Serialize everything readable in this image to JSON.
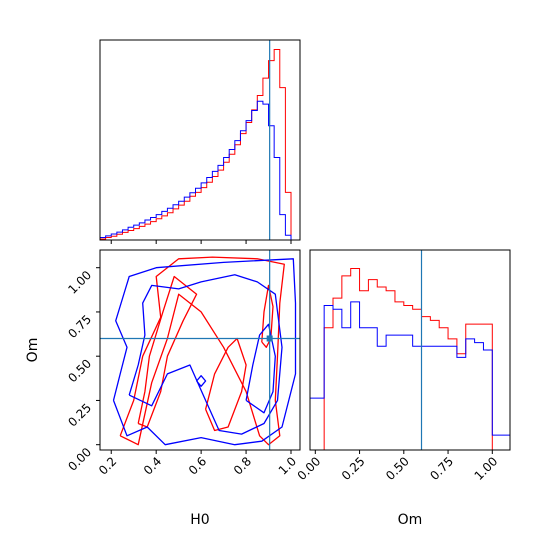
{
  "colors": {
    "series_a": "#ff0000",
    "series_b": "#0000ff",
    "truth": "#1f77b4",
    "axes": "#000000"
  },
  "chart_data": [
    {
      "type": "histogram",
      "panel": "H0 marginal",
      "xlabel": "",
      "xlim": [
        0.15,
        1.04
      ],
      "truth": 0.905,
      "bin_edges": [
        0.15,
        0.175,
        0.2,
        0.225,
        0.25,
        0.275,
        0.3,
        0.325,
        0.35,
        0.375,
        0.4,
        0.425,
        0.45,
        0.475,
        0.5,
        0.525,
        0.55,
        0.575,
        0.6,
        0.625,
        0.65,
        0.675,
        0.7,
        0.725,
        0.75,
        0.775,
        0.8,
        0.825,
        0.85,
        0.875,
        0.9,
        0.925,
        0.95,
        0.975,
        1.0
      ],
      "series": [
        {
          "color": "red",
          "values": [
            0.3,
            0.8,
            1.2,
            1.8,
            2.4,
            3.0,
            3.6,
            4.3,
            5.0,
            5.8,
            6.7,
            7.6,
            8.6,
            9.8,
            11.0,
            12.2,
            13.8,
            15.0,
            16.5,
            18.2,
            20.0,
            22.0,
            24.5,
            27.0,
            30.0,
            33.5,
            37.0,
            41.0,
            45.5,
            51.0,
            56.5,
            60.0,
            48.0,
            15.0
          ]
        },
        {
          "color": "blue",
          "values": [
            0.8,
            1.3,
            1.9,
            2.5,
            3.2,
            4.0,
            4.7,
            5.4,
            6.3,
            7.1,
            8.0,
            9.0,
            10.0,
            11.1,
            12.2,
            13.5,
            14.9,
            16.3,
            18.0,
            19.7,
            21.6,
            23.5,
            26.0,
            28.5,
            31.3,
            34.4,
            37.6,
            40.8,
            43.7,
            42.8,
            36.0,
            26.0,
            8.0,
            1.5
          ]
        }
      ]
    },
    {
      "type": "contour",
      "panel": "H0 vs Om joint",
      "xlabel": "H0",
      "ylabel": "Om",
      "xlim": [
        0.15,
        1.04
      ],
      "ylim": [
        -0.03,
        1.1
      ],
      "xticks": [
        "0.2",
        "0.4",
        "0.6",
        "0.8",
        "1.0"
      ],
      "yticks": [
        "0.00",
        "0.25",
        "0.50",
        "0.75",
        "1.00"
      ],
      "truth": [
        0.905,
        0.6
      ],
      "series": [
        {
          "color": "red",
          "contours": [
            [
              [
                0.24,
                0.05
              ],
              [
                0.3,
                0.25
              ],
              [
                0.34,
                0.5
              ],
              [
                0.42,
                0.72
              ],
              [
                0.4,
                0.95
              ],
              [
                0.5,
                1.05
              ],
              [
                0.65,
                1.06
              ],
              [
                0.85,
                1.05
              ],
              [
                0.97,
                1.02
              ],
              [
                0.95,
                0.8
              ],
              [
                0.94,
                0.5
              ],
              [
                0.93,
                0.25
              ],
              [
                0.95,
                0.05
              ],
              [
                0.9,
                0.0
              ],
              [
                0.86,
                0.05
              ],
              [
                0.8,
                0.3
              ],
              [
                0.7,
                0.55
              ],
              [
                0.6,
                0.75
              ],
              [
                0.5,
                0.85
              ],
              [
                0.45,
                0.6
              ],
              [
                0.38,
                0.35
              ],
              [
                0.32,
                0.0
              ],
              [
                0.24,
                0.05
              ]
            ],
            [
              [
                0.32,
                0.12
              ],
              [
                0.35,
                0.3
              ],
              [
                0.37,
                0.5
              ],
              [
                0.43,
                0.75
              ],
              [
                0.48,
                0.95
              ],
              [
                0.58,
                0.85
              ],
              [
                0.52,
                0.7
              ],
              [
                0.45,
                0.5
              ],
              [
                0.42,
                0.3
              ],
              [
                0.36,
                0.1
              ],
              [
                0.32,
                0.12
              ]
            ],
            [
              [
                0.62,
                0.2
              ],
              [
                0.66,
                0.4
              ],
              [
                0.72,
                0.55
              ],
              [
                0.76,
                0.6
              ],
              [
                0.8,
                0.45
              ],
              [
                0.78,
                0.3
              ],
              [
                0.72,
                0.1
              ],
              [
                0.66,
                0.08
              ],
              [
                0.62,
                0.2
              ]
            ],
            [
              [
                0.87,
                0.58
              ],
              [
                0.88,
                0.75
              ],
              [
                0.9,
                0.9
              ],
              [
                0.92,
                0.78
              ],
              [
                0.91,
                0.6
              ],
              [
                0.89,
                0.55
              ],
              [
                0.87,
                0.58
              ]
            ]
          ]
        },
        {
          "color": "blue",
          "contours": [
            [
              [
                0.21,
                0.25
              ],
              [
                0.27,
                0.05
              ],
              [
                0.36,
                0.1
              ],
              [
                0.44,
                0.0
              ],
              [
                0.6,
                0.04
              ],
              [
                0.75,
                0.0
              ],
              [
                0.87,
                0.02
              ],
              [
                0.96,
                0.1
              ],
              [
                1.02,
                0.4
              ],
              [
                1.02,
                0.8
              ],
              [
                1.01,
                1.05
              ],
              [
                0.7,
                1.03
              ],
              [
                0.4,
                1.0
              ],
              [
                0.28,
                0.95
              ],
              [
                0.22,
                0.7
              ],
              [
                0.27,
                0.55
              ],
              [
                0.24,
                0.4
              ],
              [
                0.21,
                0.25
              ]
            ],
            [
              [
                0.28,
                0.28
              ],
              [
                0.32,
                0.45
              ],
              [
                0.35,
                0.62
              ],
              [
                0.34,
                0.8
              ],
              [
                0.38,
                0.9
              ],
              [
                0.5,
                0.88
              ],
              [
                0.6,
                0.92
              ],
              [
                0.75,
                0.96
              ],
              [
                0.85,
                0.92
              ],
              [
                0.93,
                0.85
              ],
              [
                0.96,
                0.55
              ],
              [
                0.94,
                0.25
              ],
              [
                0.88,
                0.12
              ],
              [
                0.78,
                0.06
              ],
              [
                0.68,
                0.08
              ],
              [
                0.62,
                0.25
              ],
              [
                0.55,
                0.45
              ],
              [
                0.45,
                0.4
              ],
              [
                0.38,
                0.22
              ],
              [
                0.28,
                0.28
              ]
            ],
            [
              [
                0.8,
                0.25
              ],
              [
                0.83,
                0.45
              ],
              [
                0.86,
                0.62
              ],
              [
                0.9,
                0.68
              ],
              [
                0.93,
                0.5
              ],
              [
                0.92,
                0.3
              ],
              [
                0.88,
                0.18
              ],
              [
                0.8,
                0.25
              ]
            ],
            [
              [
                0.58,
                0.36
              ],
              [
                0.6,
                0.33
              ],
              [
                0.62,
                0.36
              ],
              [
                0.6,
                0.39
              ],
              [
                0.58,
                0.36
              ]
            ]
          ]
        }
      ]
    },
    {
      "type": "histogram",
      "panel": "Om marginal",
      "xlabel": "Om",
      "xlim": [
        -0.03,
        1.1
      ],
      "xticks": [
        "0.00",
        "0.25",
        "0.50",
        "0.75",
        "1.00"
      ],
      "truth": 0.6,
      "bin_edges": [
        -0.03,
        0.0,
        0.05,
        0.1,
        0.15,
        0.2,
        0.25,
        0.3,
        0.35,
        0.4,
        0.45,
        0.5,
        0.55,
        0.6,
        0.65,
        0.7,
        0.75,
        0.8,
        0.85,
        0.9,
        0.95,
        1.0,
        1.05,
        1.1
      ],
      "series": [
        {
          "color": "red",
          "values": [
            0,
            0,
            33,
            41,
            47,
            49,
            43,
            46,
            44,
            43,
            40,
            39,
            38,
            36,
            35,
            33,
            30,
            26,
            34,
            34,
            34,
            0,
            0
          ]
        },
        {
          "color": "blue",
          "values": [
            14,
            14,
            39,
            38,
            33,
            40,
            33,
            33,
            28,
            31,
            31,
            31,
            28,
            28,
            28,
            28,
            28,
            25,
            30,
            29,
            27,
            4,
            4
          ]
        }
      ]
    }
  ]
}
